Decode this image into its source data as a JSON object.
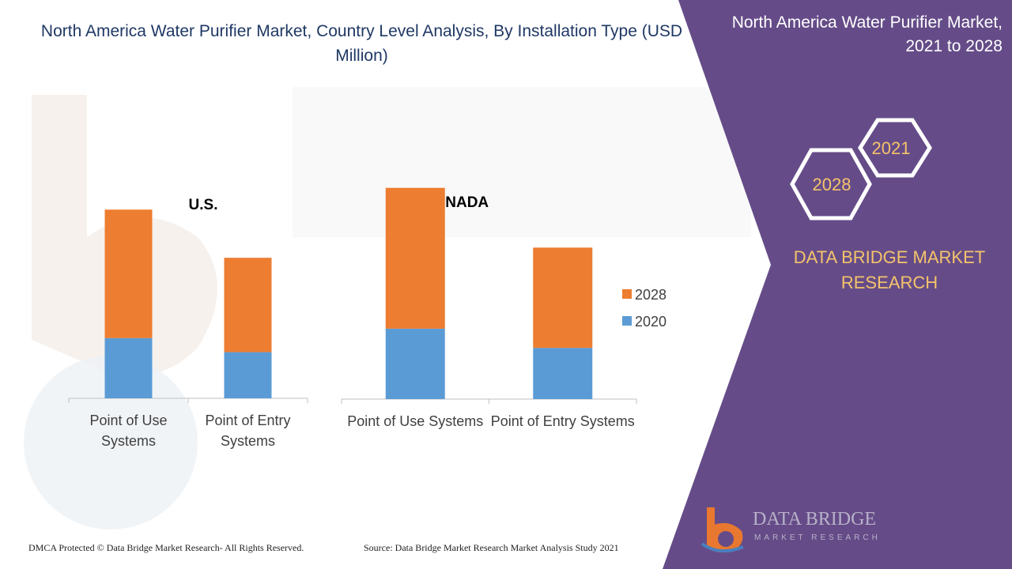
{
  "title": "North America Water Purifier Market, Country Level Analysis, By Installation Type (USD Million)",
  "panel": {
    "title": "North America Water Purifier Market, 2021 to 2028",
    "hex_top": "2021",
    "hex_bottom": "2028",
    "brand": "DATA BRIDGE MARKET RESEARCH"
  },
  "colors": {
    "series_2020": "#5b9bd5",
    "series_2028": "#ed7d31",
    "panel": "#654c88",
    "title": "#1f3864",
    "brand": "#f5c36b"
  },
  "chart_data": [
    {
      "type": "bar",
      "stacked": true,
      "title": "U.S.",
      "categories": [
        "Point of Use Systems",
        "Point of Entry Systems"
      ],
      "series": [
        {
          "name": "2020",
          "values": [
            30,
            23
          ]
        },
        {
          "name": "2028",
          "values": [
            64,
            47
          ]
        }
      ],
      "ylim": [
        0,
        100
      ],
      "grid": false
    },
    {
      "type": "bar",
      "stacked": true,
      "title": "CANADA",
      "categories": [
        "Point of Use Systems",
        "Point of Entry Systems"
      ],
      "series": [
        {
          "name": "2020",
          "values": [
            33,
            24
          ]
        },
        {
          "name": "2028",
          "values": [
            66,
            47
          ]
        }
      ],
      "ylim": [
        0,
        100
      ],
      "grid": false,
      "legend": "right"
    }
  ],
  "legend": [
    {
      "label": "2028",
      "color": "#ed7d31"
    },
    {
      "label": "2020",
      "color": "#5b9bd5"
    }
  ],
  "footer": {
    "dmca": "DMCA Protected © Data Bridge Market Research- All Rights Reserved.",
    "source": "Source: Data Bridge Market Research Market Analysis Study 2021"
  },
  "logo": {
    "word": "DATA BRIDGE",
    "sub": "MARKET RESEARCH"
  }
}
